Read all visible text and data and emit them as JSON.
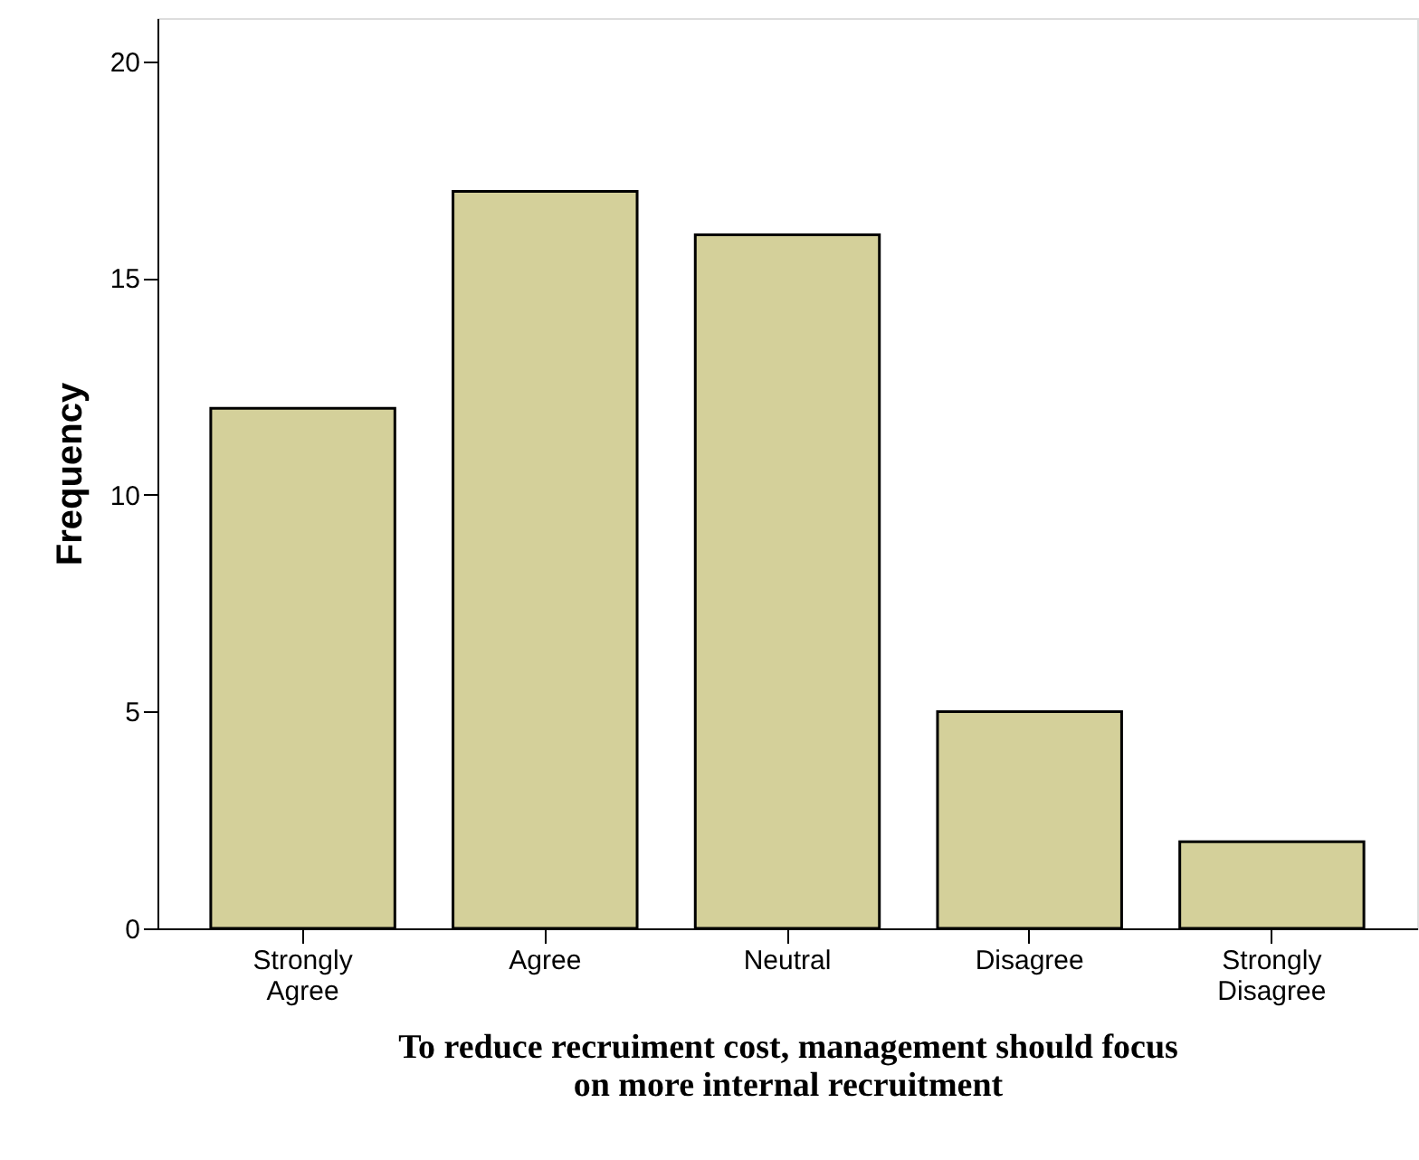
{
  "chart_data": {
    "type": "bar",
    "xlabel": "To reduce recruiment cost, management should focus\non more internal recruitment",
    "ylabel": "Frequency",
    "categories": [
      "Strongly Agree",
      "Agree",
      "Neutral",
      "Disagree",
      "Strongly Disagree"
    ],
    "values": [
      12,
      17,
      16,
      5,
      2
    ],
    "color": "#d4d09a",
    "ylim": [
      0,
      21
    ],
    "yticks": [
      0,
      5,
      10,
      15,
      20
    ],
    "grid": false
  }
}
